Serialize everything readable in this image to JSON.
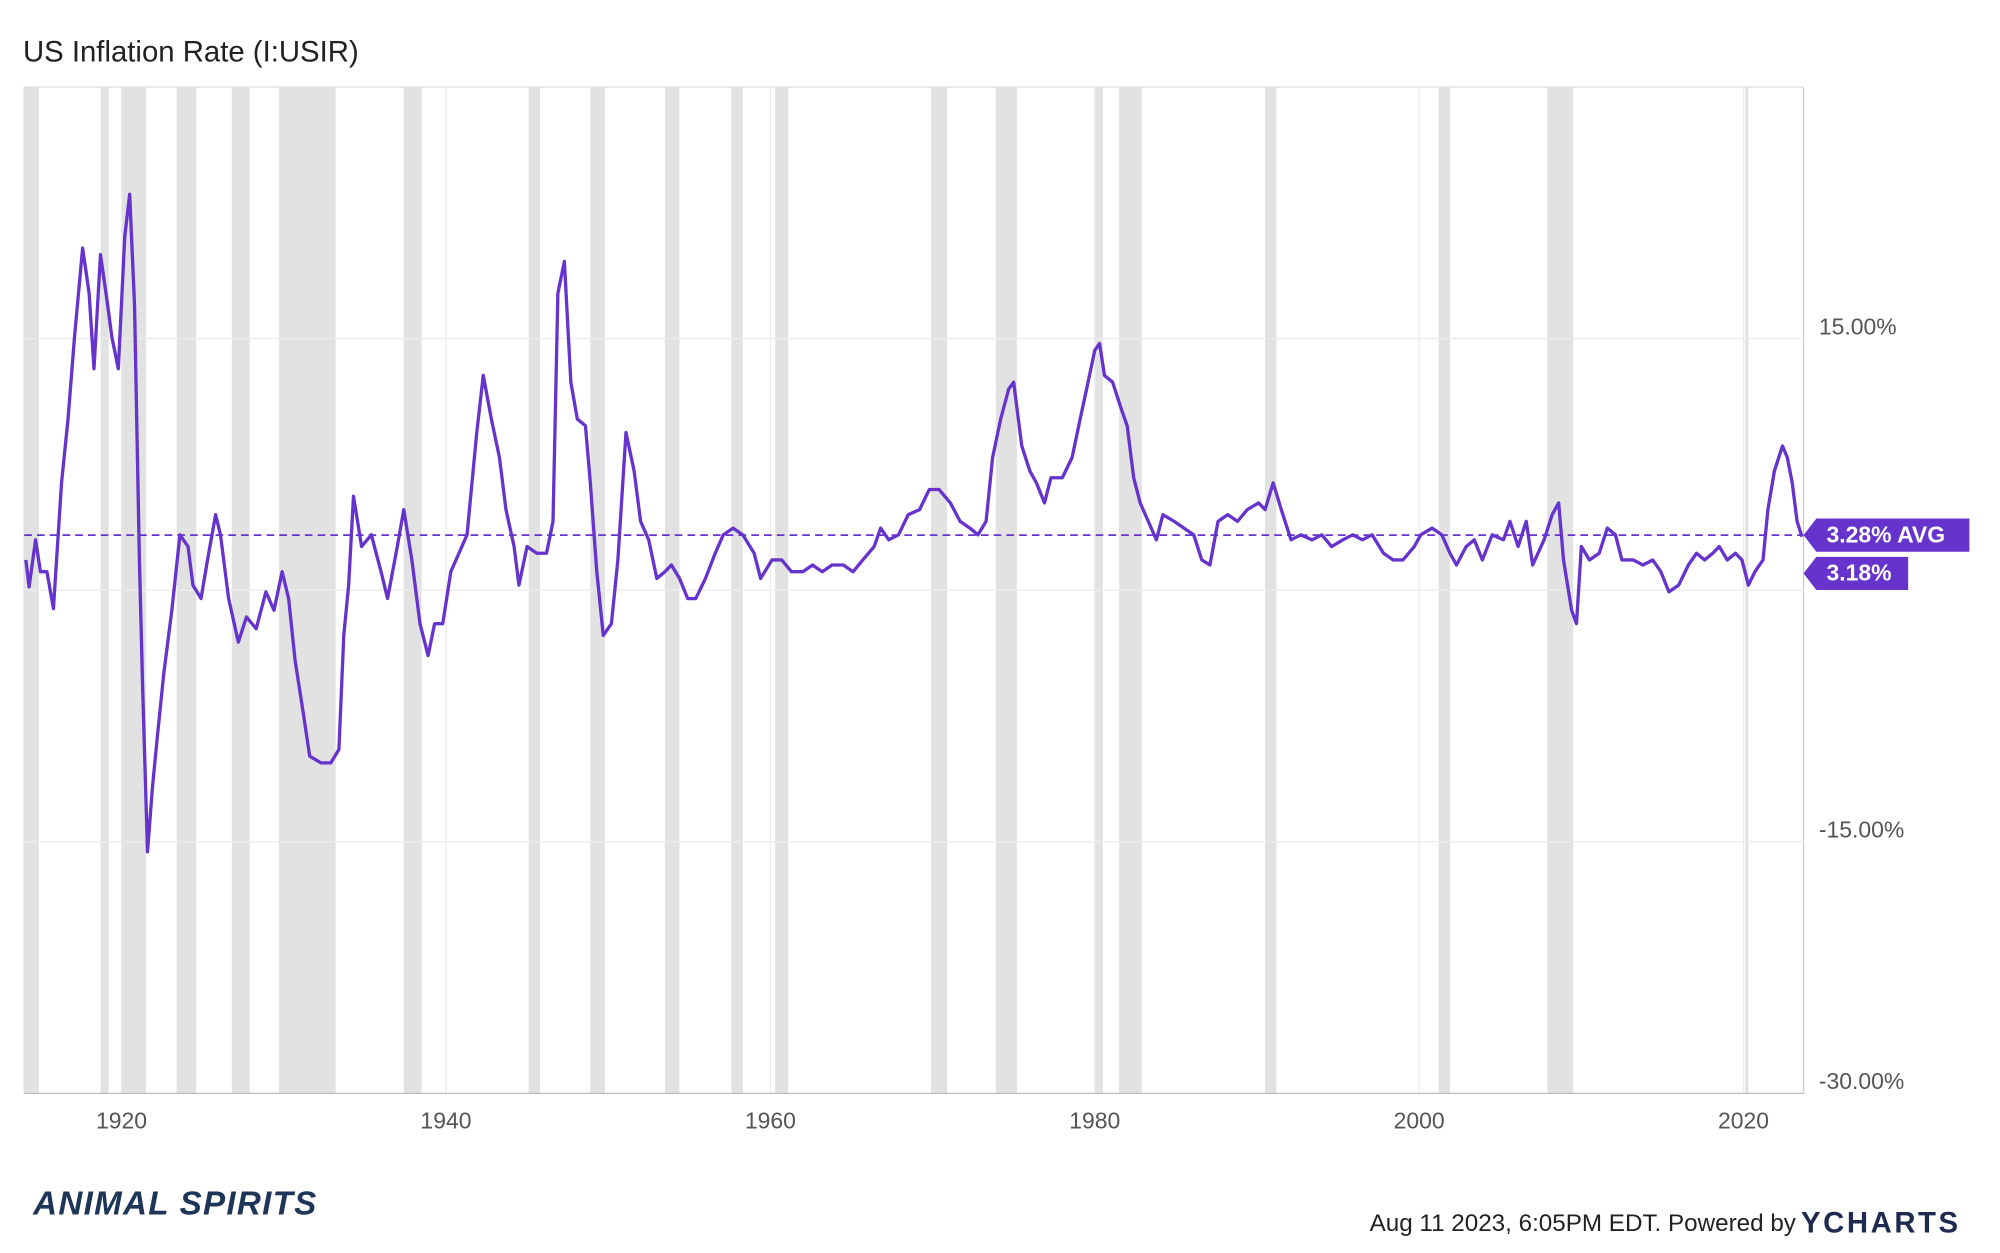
{
  "chart_data": {
    "type": "line",
    "title": "US Inflation Rate (I:USIR)",
    "footer": "Aug 11 2023, 6:05PM EDT. Powered by",
    "brand": "YCHARTS",
    "logo": "ANIMAL SPIRITS",
    "xlim": [
      1914,
      2023.7
    ],
    "xticks": [
      1920,
      1940,
      1960,
      1980,
      2000,
      2020
    ],
    "ylim": [
      -30,
      30
    ],
    "yticks": [
      {
        "value": 15,
        "label": "15.00%"
      },
      {
        "value": 0,
        "label": null
      },
      {
        "value": -15,
        "label": "-15.00%"
      },
      {
        "value": -30,
        "label": "-30.00%"
      }
    ],
    "grid": true,
    "recession_color": "#e2e2e2",
    "recessions": [
      [
        1914.0,
        1914.9
      ],
      [
        1918.7,
        1919.2
      ],
      [
        1920.0,
        1921.5
      ],
      [
        1923.4,
        1924.6
      ],
      [
        1926.8,
        1927.9
      ],
      [
        1929.7,
        1933.2
      ],
      [
        1937.4,
        1938.5
      ],
      [
        1945.1,
        1945.8
      ],
      [
        1948.9,
        1949.8
      ],
      [
        1953.5,
        1954.4
      ],
      [
        1957.6,
        1958.3
      ],
      [
        1960.3,
        1961.1
      ],
      [
        1969.9,
        1970.9
      ],
      [
        1973.9,
        1975.2
      ],
      [
        1980.0,
        1980.5
      ],
      [
        1981.5,
        1982.9
      ],
      [
        1990.5,
        1991.2
      ],
      [
        2001.2,
        2001.9
      ],
      [
        2007.9,
        2009.5
      ],
      [
        2020.1,
        2020.3
      ]
    ],
    "x": [
      1914.1,
      1914.3,
      1914.7,
      1915,
      1915.4,
      1915.8,
      1916.3,
      1916.7,
      1917.1,
      1917.6,
      1918,
      1918.3,
      1918.7,
      1919.1,
      1919.4,
      1919.8,
      1920.2,
      1920.5,
      1920.8,
      1921.1,
      1921.3,
      1921.6,
      1921.9,
      1922.2,
      1922.6,
      1923.1,
      1923.6,
      1924.1,
      1924.4,
      1924.9,
      1925.3,
      1925.8,
      1926.1,
      1926.6,
      1927.2,
      1927.7,
      1928.3,
      1928.9,
      1929.4,
      1929.9,
      1930.3,
      1930.7,
      1931.2,
      1931.6,
      1932.3,
      1932.9,
      1933.4,
      1933.7,
      1934,
      1934.3,
      1934.8,
      1935.4,
      1936,
      1936.4,
      1937,
      1937.4,
      1937.9,
      1938.4,
      1938.9,
      1939.3,
      1939.8,
      1940.3,
      1940.8,
      1941.3,
      1941.9,
      1942.3,
      1942.8,
      1943.3,
      1943.7,
      1944.2,
      1944.5,
      1945,
      1945.6,
      1946.2,
      1946.6,
      1946.9,
      1947.3,
      1947.7,
      1948.1,
      1948.6,
      1948.9,
      1949.3,
      1949.7,
      1950.2,
      1950.6,
      1951.1,
      1951.6,
      1952,
      1952.5,
      1953,
      1953.5,
      1953.9,
      1954.4,
      1954.9,
      1955.4,
      1956,
      1956.6,
      1957.1,
      1957.7,
      1958.3,
      1959,
      1959.4,
      1960.1,
      1960.7,
      1961.3,
      1962,
      1962.6,
      1963.2,
      1963.8,
      1964.5,
      1965.1,
      1965.7,
      1966.4,
      1966.8,
      1967.3,
      1967.9,
      1968.5,
      1969.2,
      1969.8,
      1970.4,
      1971.1,
      1971.7,
      1972.3,
      1972.8,
      1973.3,
      1973.7,
      1974.2,
      1974.7,
      1975,
      1975.5,
      1976,
      1976.4,
      1976.9,
      1977.3,
      1978,
      1978.6,
      1979.1,
      1979.5,
      1980,
      1980.3,
      1980.6,
      1981.1,
      1981.6,
      1982,
      1982.4,
      1982.8,
      1983.3,
      1983.8,
      1984.2,
      1984.9,
      1985.5,
      1986.1,
      1986.6,
      1987.1,
      1987.6,
      1988.2,
      1988.8,
      1989.4,
      1990.1,
      1990.5,
      1991,
      1991.5,
      1992.1,
      1992.7,
      1993.4,
      1994,
      1994.6,
      1995.3,
      1995.9,
      1996.5,
      1997.1,
      1997.8,
      1998.4,
      1999,
      1999.7,
      2000.1,
      2000.8,
      2001.4,
      2001.9,
      2002.3,
      2002.9,
      2003.4,
      2003.9,
      2004.5,
      2005.2,
      2005.6,
      2006.1,
      2006.6,
      2007,
      2007.7,
      2008.2,
      2008.6,
      2008.9,
      2009.4,
      2009.7,
      2010,
      2010.5,
      2011.1,
      2011.6,
      2012.1,
      2012.5,
      2013.2,
      2013.8,
      2014.4,
      2014.9,
      2015.4,
      2016,
      2016.6,
      2017.1,
      2017.6,
      2018.1,
      2018.5,
      2019,
      2019.5,
      2019.9,
      2020.3,
      2020.7,
      2021.2,
      2021.5,
      2021.9,
      2022.4,
      2022.7,
      2023,
      2023.3,
      2023.6
    ],
    "series": [
      {
        "name": "US Inflation Rate",
        "color": "#6633cc",
        "values": [
          1.8,
          0.2,
          3.0,
          1.1,
          1.1,
          -1.1,
          6.4,
          10.2,
          15.1,
          20.4,
          17.7,
          13.2,
          20,
          17.3,
          15.1,
          13.2,
          21.1,
          23.6,
          17,
          1.8,
          -5.8,
          -15.6,
          -11.8,
          -8.8,
          -5,
          -1.2,
          3.3,
          2.6,
          0.3,
          -0.5,
          1.8,
          4.5,
          3.3,
          -0.5,
          -3.1,
          -1.6,
          -2.3,
          -0.1,
          -1.2,
          1.1,
          -0.5,
          -4.2,
          -7.3,
          -9.9,
          -10.3,
          -10.3,
          -9.5,
          -2.7,
          0.3,
          5.6,
          2.6,
          3.3,
          1.1,
          -0.5,
          2.6,
          4.8,
          1.8,
          -2,
          -3.9,
          -2,
          -2,
          1.1,
          2.2,
          3.3,
          9.4,
          12.8,
          10.2,
          7.9,
          4.8,
          2.6,
          0.3,
          2.6,
          2.2,
          2.2,
          4.1,
          17.7,
          19.6,
          12.4,
          10.2,
          9.8,
          6.4,
          1.1,
          -2.7,
          -2,
          1.8,
          9.4,
          7.1,
          4.1,
          3,
          0.7,
          1.1,
          1.5,
          0.7,
          -0.5,
          -0.5,
          0.7,
          2.2,
          3.3,
          3.7,
          3.3,
          2.2,
          0.7,
          1.8,
          1.8,
          1.1,
          1.1,
          1.5,
          1.1,
          1.5,
          1.5,
          1.1,
          1.8,
          2.6,
          3.7,
          3,
          3.3,
          4.5,
          4.8,
          6,
          6,
          5.2,
          4.1,
          3.7,
          3.3,
          4.1,
          7.9,
          10.2,
          12,
          12.4,
          8.6,
          7.1,
          6.4,
          5.2,
          6.7,
          6.7,
          7.9,
          10.2,
          12,
          14.3,
          14.7,
          12.8,
          12.4,
          10.9,
          9.8,
          6.7,
          5.2,
          4.1,
          3,
          4.5,
          4.1,
          3.7,
          3.3,
          1.8,
          1.5,
          4.1,
          4.5,
          4.1,
          4.8,
          5.2,
          4.8,
          6.4,
          4.8,
          3,
          3.3,
          3,
          3.3,
          2.6,
          3,
          3.3,
          3,
          3.3,
          2.2,
          1.8,
          1.8,
          2.6,
          3.3,
          3.7,
          3.3,
          2.2,
          1.5,
          2.6,
          3,
          1.8,
          3.3,
          3,
          4.1,
          2.6,
          4.1,
          1.5,
          3,
          4.5,
          5.2,
          1.8,
          -1.2,
          -2,
          2.6,
          1.8,
          2.2,
          3.7,
          3.3,
          1.8,
          1.8,
          1.5,
          1.8,
          1.1,
          -0.1,
          0.3,
          1.5,
          2.2,
          1.8,
          2.2,
          2.6,
          1.8,
          2.2,
          1.8,
          0.3,
          1.1,
          1.8,
          4.8,
          7.1,
          8.6,
          7.9,
          6.4,
          4.1,
          3.18
        ]
      }
    ],
    "reference_line": {
      "value": 3.28,
      "label": "3.28% AVG"
    },
    "last_value": {
      "value": 3.18,
      "label": "3.18%"
    }
  }
}
